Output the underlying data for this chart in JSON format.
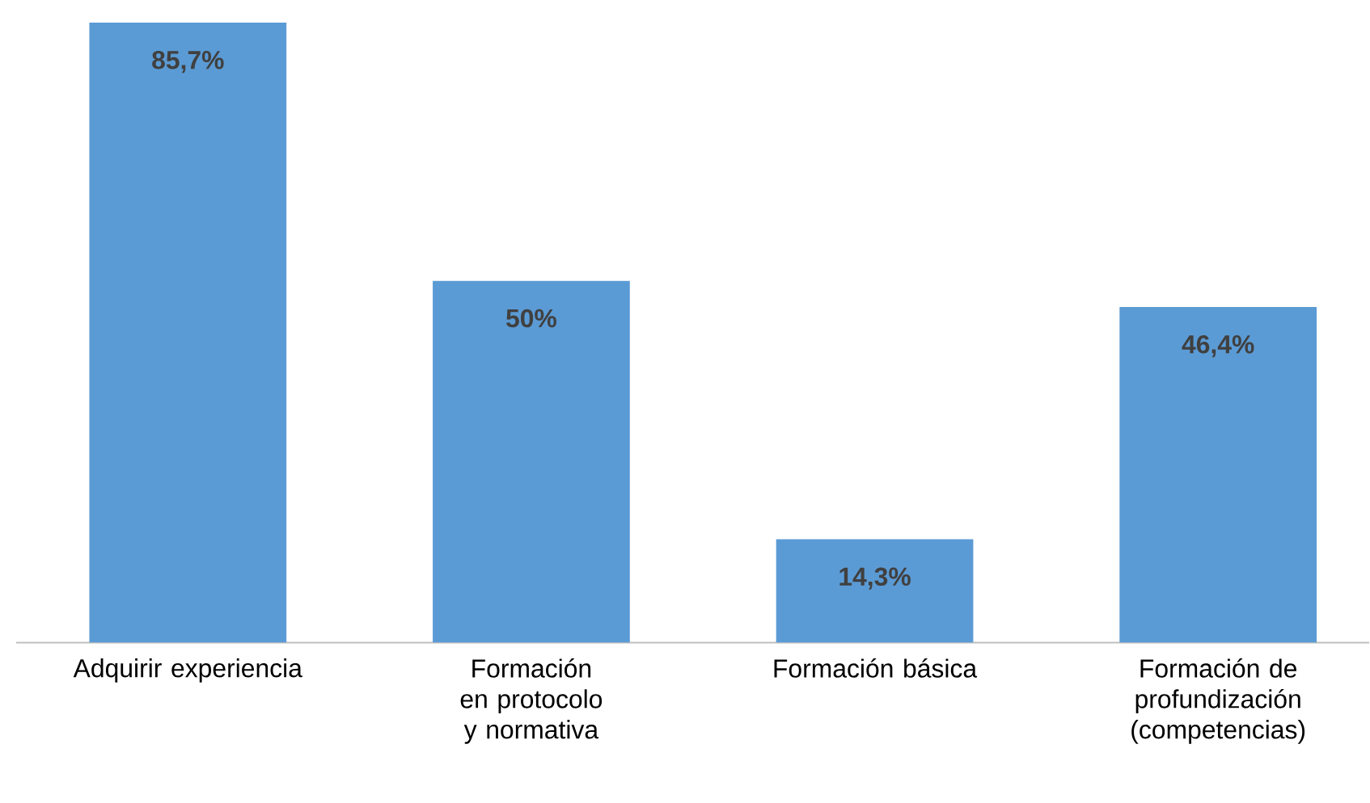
{
  "chart_data": {
    "type": "bar",
    "categories": [
      "Adquirir experiencia",
      "Formación en protocolo y normativa",
      "Formación básica",
      "Formación de profundización (competencias)"
    ],
    "values": [
      85.7,
      50,
      14.3,
      46.4
    ],
    "value_labels": [
      "85,7%",
      "50%",
      "14,3%",
      "46,4%"
    ],
    "color": "#5b9bd5",
    "tick_labels": "x"
  }
}
